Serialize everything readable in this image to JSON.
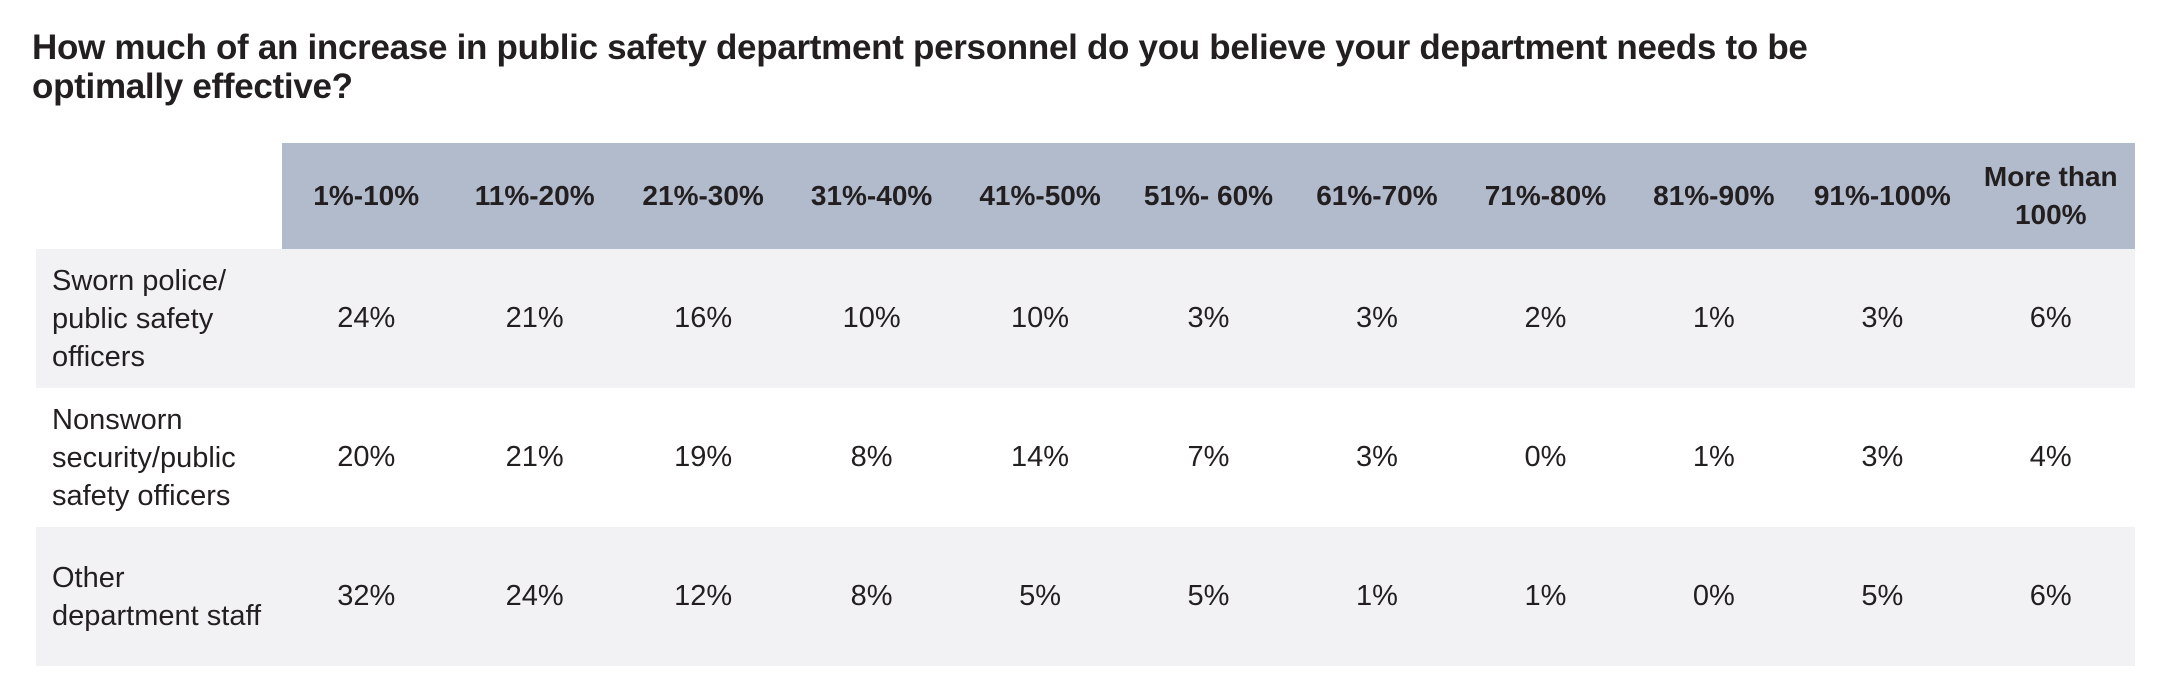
{
  "title": "How much of an increase in public safety department personnel do you believe your department needs to be optimally effective?",
  "chart_data": {
    "type": "table",
    "title": "How much of an increase in public safety department personnel do you believe your department needs to be optimally effective?",
    "columns": [
      "1%-10%",
      "11%-20%",
      "21%-30%",
      "31%-40%",
      "41%-50%",
      "51%- 60%",
      "61%-70%",
      "71%-80%",
      "81%-90%",
      "91%-100%",
      "More than 100%"
    ],
    "rows": [
      {
        "label": "Sworn police/ public safety officers",
        "values": [
          "24%",
          "21%",
          "16%",
          "10%",
          "10%",
          "3%",
          "3%",
          "2%",
          "1%",
          "3%",
          "6%"
        ]
      },
      {
        "label": "Nonsworn security/public safety officers",
        "values": [
          "20%",
          "21%",
          "19%",
          "8%",
          "14%",
          "7%",
          "3%",
          "0%",
          "1%",
          "3%",
          "4%"
        ]
      },
      {
        "label": "Other department staff",
        "values": [
          "32%",
          "24%",
          "12%",
          "8%",
          "5%",
          "5%",
          "1%",
          "1%",
          "0%",
          "5%",
          "6%"
        ]
      }
    ]
  },
  "colors": {
    "header_bg": "#b1bbcc",
    "shaded_row_bg": "#f2f2f4",
    "text": "#231f20"
  }
}
